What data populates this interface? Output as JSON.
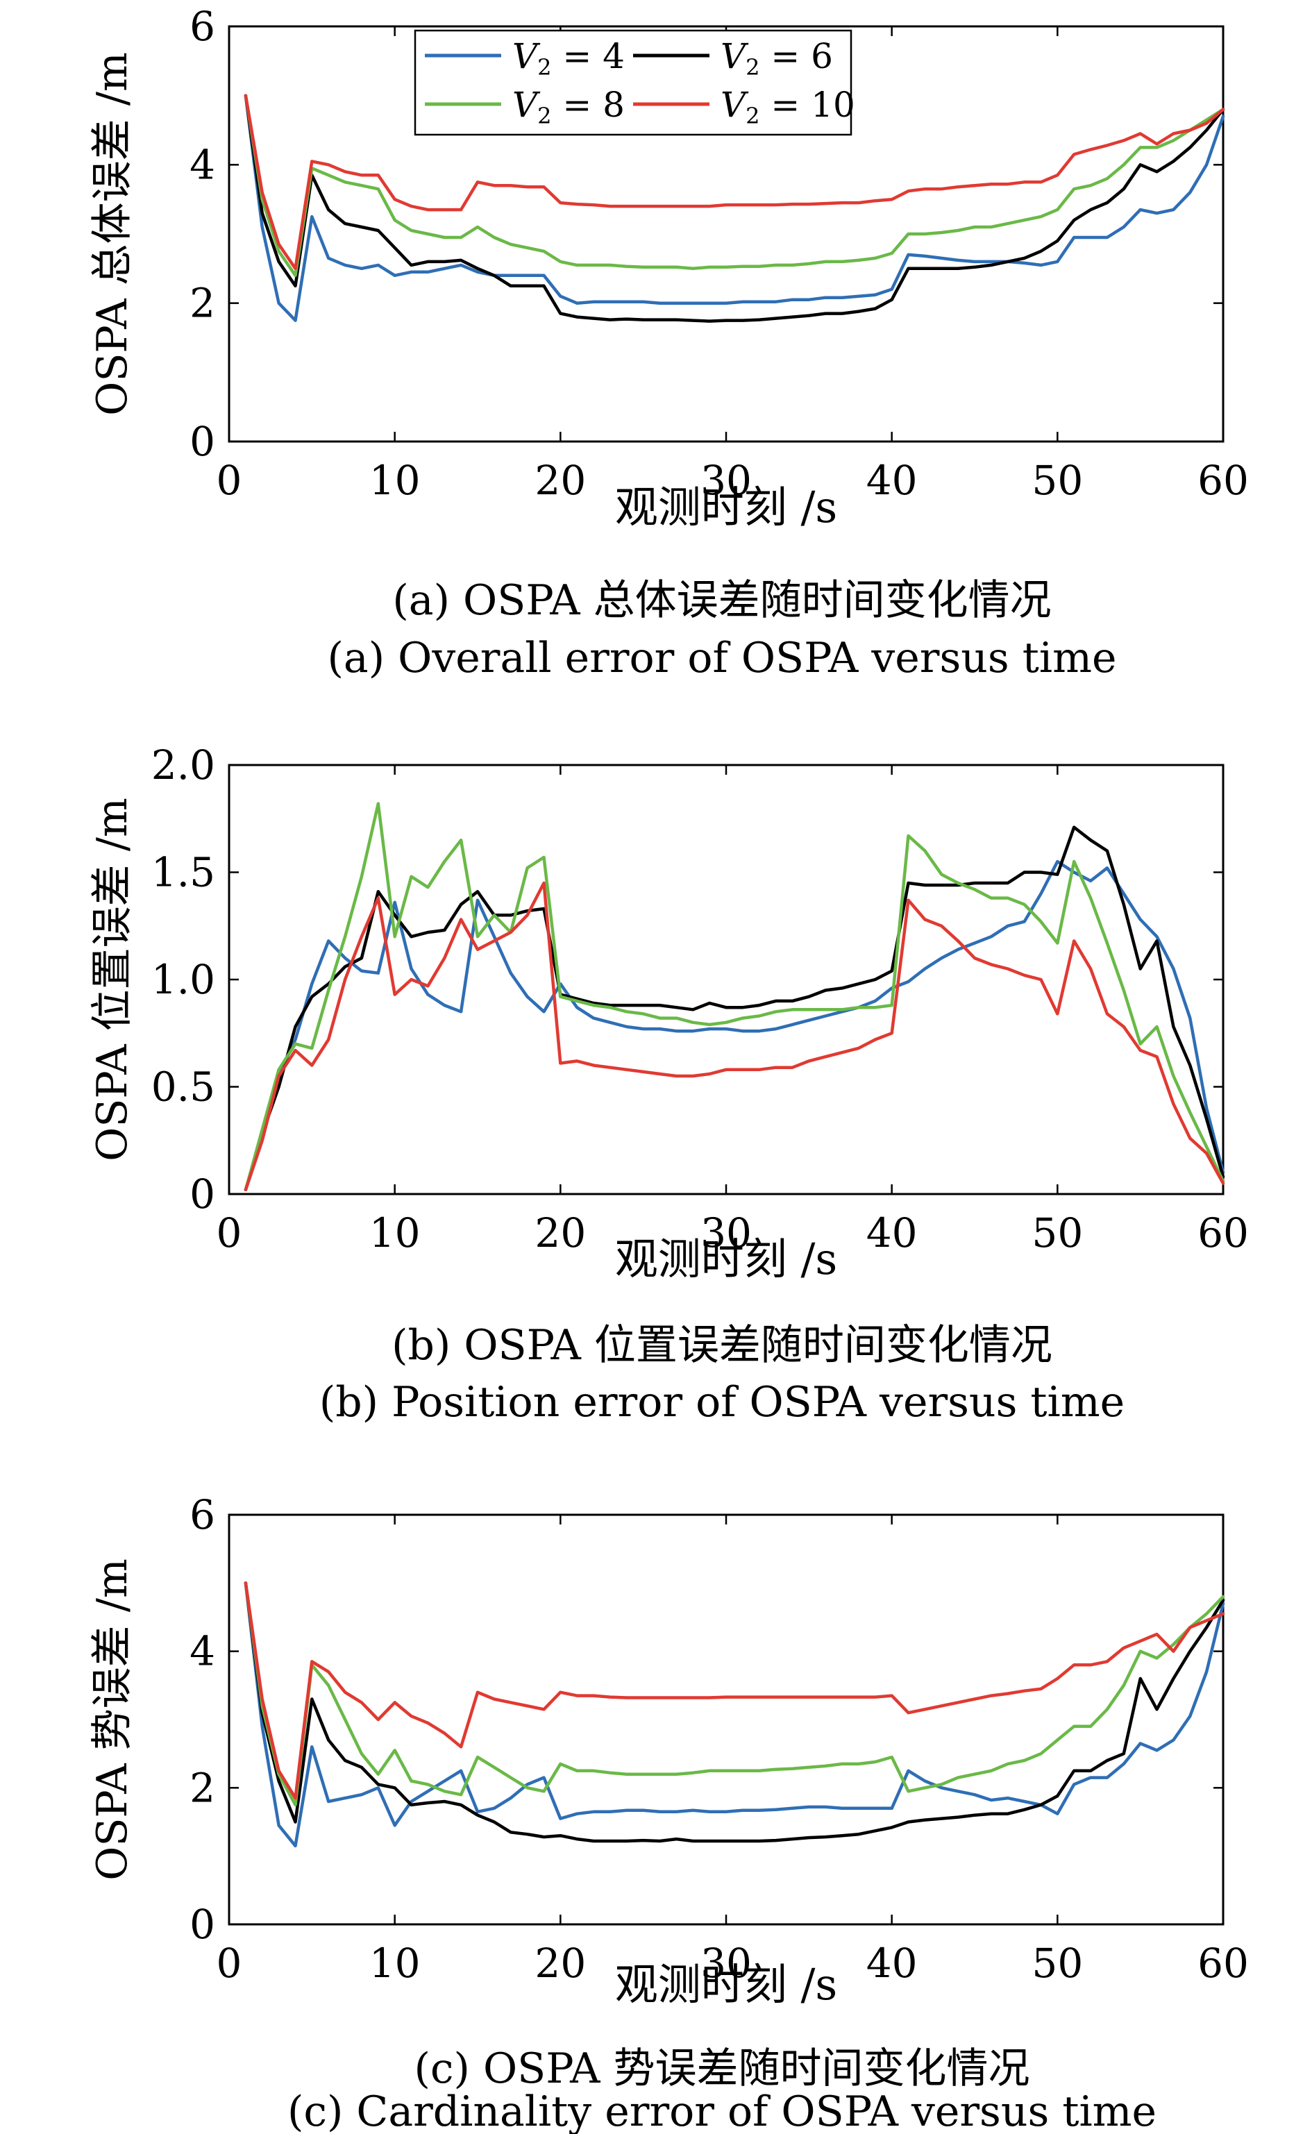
{
  "chart_data": [
    {
      "type": "line",
      "caption_cn": "(a) OSPA 总体误差随时间变化情况",
      "caption_en": "(a) Overall error of OSPA versus time",
      "xlabel": "观测时刻 /s",
      "ylabel": "OSPA 总体误差 /m",
      "xlim": [
        0,
        60
      ],
      "ylim": [
        0,
        6
      ],
      "xticks": [
        "0",
        "10",
        "20",
        "30",
        "40",
        "50",
        "60"
      ],
      "yticks": [
        "0",
        "2",
        "4",
        "6"
      ],
      "grid": false,
      "legend_position": "top-left",
      "x": [
        1,
        2,
        3,
        4,
        5,
        6,
        7,
        8,
        9,
        10,
        11,
        12,
        13,
        14,
        15,
        16,
        17,
        18,
        19,
        20,
        21,
        22,
        23,
        24,
        25,
        26,
        27,
        28,
        29,
        30,
        31,
        32,
        33,
        34,
        35,
        36,
        37,
        38,
        39,
        40,
        41,
        42,
        43,
        44,
        45,
        46,
        47,
        48,
        49,
        50,
        51,
        52,
        53,
        54,
        55,
        56,
        57,
        58,
        59,
        60
      ],
      "series": [
        {
          "name": "V₂ = 4",
          "color": "#2f6eb5",
          "values": [
            5.0,
            3.1,
            2.0,
            1.75,
            3.25,
            2.65,
            2.55,
            2.5,
            2.55,
            2.4,
            2.45,
            2.45,
            2.5,
            2.55,
            2.45,
            2.4,
            2.4,
            2.4,
            2.4,
            2.1,
            2.0,
            2.02,
            2.02,
            2.02,
            2.02,
            2.0,
            2.0,
            2.0,
            2.0,
            2.0,
            2.02,
            2.02,
            2.02,
            2.05,
            2.05,
            2.08,
            2.08,
            2.1,
            2.12,
            2.2,
            2.7,
            2.68,
            2.65,
            2.62,
            2.6,
            2.6,
            2.6,
            2.58,
            2.55,
            2.6,
            2.95,
            2.95,
            2.95,
            3.1,
            3.35,
            3.3,
            3.35,
            3.6,
            4.0,
            4.7
          ]
        },
        {
          "name": "V₂ = 6",
          "color": "#000000",
          "values": [
            5.0,
            3.3,
            2.6,
            2.25,
            3.85,
            3.35,
            3.15,
            3.1,
            3.05,
            2.8,
            2.55,
            2.6,
            2.6,
            2.62,
            2.5,
            2.4,
            2.25,
            2.25,
            2.25,
            1.85,
            1.8,
            1.78,
            1.76,
            1.77,
            1.76,
            1.76,
            1.76,
            1.75,
            1.74,
            1.75,
            1.75,
            1.76,
            1.78,
            1.8,
            1.82,
            1.85,
            1.85,
            1.88,
            1.92,
            2.05,
            2.5,
            2.5,
            2.5,
            2.5,
            2.52,
            2.55,
            2.6,
            2.65,
            2.75,
            2.9,
            3.2,
            3.35,
            3.45,
            3.65,
            4.0,
            3.9,
            4.05,
            4.25,
            4.5,
            4.8
          ]
        },
        {
          "name": "V₂ = 8",
          "color": "#6ab947",
          "values": [
            5.0,
            3.5,
            2.75,
            2.4,
            3.95,
            3.85,
            3.75,
            3.7,
            3.65,
            3.2,
            3.05,
            3.0,
            2.95,
            2.95,
            3.1,
            2.95,
            2.85,
            2.8,
            2.75,
            2.6,
            2.55,
            2.55,
            2.55,
            2.53,
            2.52,
            2.52,
            2.52,
            2.5,
            2.52,
            2.52,
            2.53,
            2.53,
            2.55,
            2.55,
            2.57,
            2.6,
            2.6,
            2.62,
            2.65,
            2.72,
            3.0,
            3.0,
            3.02,
            3.05,
            3.1,
            3.1,
            3.15,
            3.2,
            3.25,
            3.35,
            3.65,
            3.7,
            3.8,
            4.0,
            4.25,
            4.25,
            4.35,
            4.5,
            4.65,
            4.8
          ]
        },
        {
          "name": "V₂ = 10",
          "color": "#e03a32",
          "values": [
            5.0,
            3.6,
            2.85,
            2.5,
            4.05,
            4.0,
            3.9,
            3.85,
            3.85,
            3.5,
            3.4,
            3.35,
            3.35,
            3.35,
            3.75,
            3.7,
            3.7,
            3.68,
            3.68,
            3.45,
            3.43,
            3.42,
            3.4,
            3.4,
            3.4,
            3.4,
            3.4,
            3.4,
            3.4,
            3.42,
            3.42,
            3.42,
            3.42,
            3.43,
            3.43,
            3.44,
            3.45,
            3.45,
            3.48,
            3.5,
            3.62,
            3.65,
            3.65,
            3.68,
            3.7,
            3.72,
            3.72,
            3.75,
            3.75,
            3.85,
            4.15,
            4.22,
            4.28,
            4.35,
            4.45,
            4.3,
            4.45,
            4.5,
            4.6,
            4.8
          ]
        }
      ]
    },
    {
      "type": "line",
      "caption_cn": "(b) OSPA 位置误差随时间变化情况",
      "caption_en": "(b) Position error of OSPA versus time",
      "xlabel": "观测时刻 /s",
      "ylabel": "OSPA 位置误差 /m",
      "xlim": [
        0,
        60
      ],
      "ylim": [
        0,
        2
      ],
      "xticks": [
        "0",
        "10",
        "20",
        "30",
        "40",
        "50",
        "60"
      ],
      "yticks": [
        "0",
        "0.5",
        "1.0",
        "1.5",
        "2.0"
      ],
      "grid": false,
      "x": [
        1,
        2,
        3,
        4,
        5,
        6,
        7,
        8,
        9,
        10,
        11,
        12,
        13,
        14,
        15,
        16,
        17,
        18,
        19,
        20,
        21,
        22,
        23,
        24,
        25,
        26,
        27,
        28,
        29,
        30,
        31,
        32,
        33,
        34,
        35,
        36,
        37,
        38,
        39,
        40,
        41,
        42,
        43,
        44,
        45,
        46,
        47,
        48,
        49,
        50,
        51,
        52,
        53,
        54,
        55,
        56,
        57,
        58,
        59,
        60
      ],
      "series": [
        {
          "name": "V₂ = 4",
          "color": "#2f6eb5",
          "values": [
            0.02,
            0.25,
            0.55,
            0.72,
            0.98,
            1.18,
            1.1,
            1.04,
            1.03,
            1.36,
            1.05,
            0.93,
            0.88,
            0.85,
            1.37,
            1.2,
            1.03,
            0.92,
            0.85,
            0.98,
            0.87,
            0.82,
            0.8,
            0.78,
            0.77,
            0.77,
            0.76,
            0.76,
            0.77,
            0.77,
            0.76,
            0.76,
            0.77,
            0.79,
            0.81,
            0.83,
            0.85,
            0.87,
            0.9,
            0.96,
            0.99,
            1.05,
            1.1,
            1.14,
            1.17,
            1.2,
            1.25,
            1.27,
            1.4,
            1.55,
            1.5,
            1.46,
            1.52,
            1.4,
            1.28,
            1.2,
            1.05,
            0.82,
            0.4,
            0.1
          ]
        },
        {
          "name": "V₂ = 6",
          "color": "#000000",
          "values": [
            0.02,
            0.28,
            0.5,
            0.78,
            0.92,
            0.98,
            1.06,
            1.1,
            1.41,
            1.3,
            1.2,
            1.22,
            1.23,
            1.35,
            1.41,
            1.3,
            1.3,
            1.32,
            1.33,
            0.93,
            0.91,
            0.89,
            0.88,
            0.88,
            0.88,
            0.88,
            0.87,
            0.86,
            0.89,
            0.87,
            0.87,
            0.88,
            0.9,
            0.9,
            0.92,
            0.95,
            0.96,
            0.98,
            1.0,
            1.04,
            1.45,
            1.44,
            1.44,
            1.44,
            1.45,
            1.45,
            1.45,
            1.5,
            1.5,
            1.49,
            1.71,
            1.65,
            1.6,
            1.35,
            1.05,
            1.18,
            0.78,
            0.6,
            0.35,
            0.08
          ]
        },
        {
          "name": "V₂ = 8",
          "color": "#6ab947",
          "values": [
            0.02,
            0.3,
            0.58,
            0.7,
            0.68,
            0.95,
            1.2,
            1.48,
            1.82,
            1.2,
            1.48,
            1.43,
            1.55,
            1.65,
            1.2,
            1.3,
            1.22,
            1.52,
            1.57,
            0.92,
            0.9,
            0.88,
            0.87,
            0.85,
            0.84,
            0.82,
            0.82,
            0.8,
            0.79,
            0.8,
            0.82,
            0.83,
            0.85,
            0.86,
            0.86,
            0.86,
            0.86,
            0.87,
            0.87,
            0.88,
            1.67,
            1.6,
            1.49,
            1.45,
            1.42,
            1.38,
            1.38,
            1.35,
            1.27,
            1.17,
            1.55,
            1.38,
            1.17,
            0.95,
            0.7,
            0.78,
            0.55,
            0.38,
            0.22,
            0.06
          ]
        },
        {
          "name": "V₂ = 10",
          "color": "#e03a32",
          "values": [
            0.02,
            0.25,
            0.55,
            0.67,
            0.6,
            0.72,
            1.0,
            1.2,
            1.38,
            0.93,
            1.0,
            0.97,
            1.1,
            1.28,
            1.14,
            1.18,
            1.22,
            1.3,
            1.45,
            0.61,
            0.62,
            0.6,
            0.59,
            0.58,
            0.57,
            0.56,
            0.55,
            0.55,
            0.56,
            0.58,
            0.58,
            0.58,
            0.59,
            0.59,
            0.62,
            0.64,
            0.66,
            0.68,
            0.72,
            0.75,
            1.37,
            1.28,
            1.25,
            1.18,
            1.1,
            1.07,
            1.05,
            1.02,
            1.0,
            0.84,
            1.18,
            1.05,
            0.84,
            0.78,
            0.67,
            0.64,
            0.42,
            0.26,
            0.19,
            0.05
          ]
        }
      ]
    },
    {
      "type": "line",
      "caption_cn": "(c) OSPA 势误差随时间变化情况",
      "caption_en": "(c) Cardinality error of OSPA versus time",
      "xlabel": "观测时刻 /s",
      "ylabel": "OSPA 势误差 /m",
      "xlim": [
        0,
        60
      ],
      "ylim": [
        0,
        6
      ],
      "xticks": [
        "0",
        "10",
        "20",
        "30",
        "40",
        "50",
        "60"
      ],
      "yticks": [
        "0",
        "2",
        "4",
        "6"
      ],
      "grid": false,
      "x": [
        1,
        2,
        3,
        4,
        5,
        6,
        7,
        8,
        9,
        10,
        11,
        12,
        13,
        14,
        15,
        16,
        17,
        18,
        19,
        20,
        21,
        22,
        23,
        24,
        25,
        26,
        27,
        28,
        29,
        30,
        31,
        32,
        33,
        34,
        35,
        36,
        37,
        38,
        39,
        40,
        41,
        42,
        43,
        44,
        45,
        46,
        47,
        48,
        49,
        50,
        51,
        52,
        53,
        54,
        55,
        56,
        57,
        58,
        59,
        60
      ],
      "series": [
        {
          "name": "V₂ = 4",
          "color": "#2f6eb5",
          "values": [
            5.0,
            2.9,
            1.45,
            1.15,
            2.6,
            1.8,
            1.85,
            1.9,
            2.0,
            1.45,
            1.8,
            1.95,
            2.1,
            2.25,
            1.65,
            1.7,
            1.85,
            2.05,
            2.15,
            1.55,
            1.62,
            1.65,
            1.65,
            1.67,
            1.67,
            1.65,
            1.65,
            1.67,
            1.65,
            1.65,
            1.67,
            1.67,
            1.68,
            1.7,
            1.72,
            1.72,
            1.7,
            1.7,
            1.7,
            1.7,
            2.25,
            2.1,
            2.0,
            1.95,
            1.9,
            1.82,
            1.85,
            1.8,
            1.75,
            1.62,
            2.05,
            2.15,
            2.15,
            2.35,
            2.65,
            2.55,
            2.7,
            3.05,
            3.7,
            4.7
          ]
        },
        {
          "name": "V₂ = 6",
          "color": "#000000",
          "values": [
            5.0,
            3.1,
            2.1,
            1.5,
            3.3,
            2.7,
            2.4,
            2.3,
            2.05,
            2.0,
            1.75,
            1.78,
            1.8,
            1.75,
            1.6,
            1.5,
            1.35,
            1.32,
            1.28,
            1.3,
            1.25,
            1.22,
            1.22,
            1.22,
            1.23,
            1.22,
            1.25,
            1.22,
            1.22,
            1.22,
            1.22,
            1.22,
            1.23,
            1.25,
            1.27,
            1.28,
            1.3,
            1.32,
            1.37,
            1.42,
            1.5,
            1.53,
            1.55,
            1.57,
            1.6,
            1.62,
            1.62,
            1.68,
            1.75,
            1.88,
            2.25,
            2.25,
            2.4,
            2.5,
            3.6,
            3.15,
            3.6,
            4.0,
            4.35,
            4.75
          ]
        },
        {
          "name": "V₂ = 8",
          "color": "#6ab947",
          "values": [
            5.0,
            3.2,
            2.2,
            1.75,
            3.8,
            3.5,
            3.0,
            2.5,
            2.2,
            2.55,
            2.1,
            2.05,
            1.95,
            1.9,
            2.45,
            2.3,
            2.15,
            2.0,
            1.95,
            2.35,
            2.25,
            2.25,
            2.22,
            2.2,
            2.2,
            2.2,
            2.2,
            2.22,
            2.25,
            2.25,
            2.25,
            2.25,
            2.27,
            2.28,
            2.3,
            2.32,
            2.35,
            2.35,
            2.38,
            2.45,
            1.95,
            2.0,
            2.05,
            2.15,
            2.2,
            2.25,
            2.35,
            2.4,
            2.5,
            2.7,
            2.9,
            2.9,
            3.15,
            3.5,
            4.0,
            3.9,
            4.1,
            4.35,
            4.55,
            4.8
          ]
        },
        {
          "name": "V₂ = 10",
          "color": "#e03a32",
          "values": [
            5.0,
            3.3,
            2.25,
            1.85,
            3.85,
            3.7,
            3.4,
            3.25,
            3.0,
            3.25,
            3.05,
            2.95,
            2.8,
            2.6,
            3.4,
            3.3,
            3.25,
            3.2,
            3.15,
            3.4,
            3.35,
            3.35,
            3.33,
            3.32,
            3.32,
            3.32,
            3.32,
            3.32,
            3.32,
            3.33,
            3.33,
            3.33,
            3.33,
            3.33,
            3.33,
            3.33,
            3.33,
            3.33,
            3.33,
            3.35,
            3.1,
            3.15,
            3.2,
            3.25,
            3.3,
            3.35,
            3.38,
            3.42,
            3.45,
            3.6,
            3.8,
            3.8,
            3.85,
            4.05,
            4.15,
            4.25,
            4.0,
            4.35,
            4.45,
            4.55
          ]
        }
      ]
    }
  ],
  "legend": {
    "items": [
      {
        "var": "V",
        "sub": "2",
        "rest": " = 4",
        "color": "#2f6eb5"
      },
      {
        "var": "V",
        "sub": "2",
        "rest": " = 6",
        "color": "#000000"
      },
      {
        "var": "V",
        "sub": "2",
        "rest": " = 8",
        "color": "#6ab947"
      },
      {
        "var": "V",
        "sub": "2",
        "rest": " = 10",
        "color": "#e03a32"
      }
    ]
  }
}
